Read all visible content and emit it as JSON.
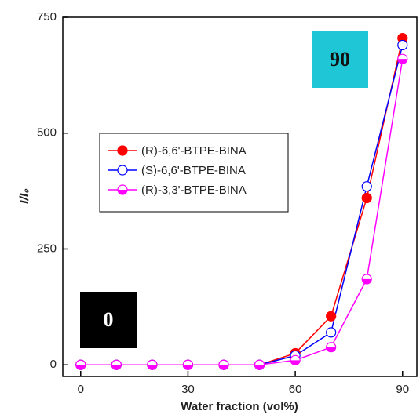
{
  "chart_data": {
    "type": "line",
    "x_label": "Water fraction (vol%)",
    "y_label": "I/I₀",
    "x": [
      0,
      10,
      20,
      30,
      40,
      50,
      60,
      70,
      80,
      90
    ],
    "series": [
      {
        "name": "(R)-6,6'-BTPE-BINA",
        "color": "#ff0000",
        "marker": "filled",
        "values": [
          0,
          0,
          0,
          0,
          0,
          0,
          25,
          105,
          360,
          705
        ]
      },
      {
        "name": "(S)-6,6'-BTPE-BINA",
        "color": "#0000ff",
        "marker": "open",
        "values": [
          0,
          0,
          0,
          0,
          0,
          0,
          20,
          70,
          385,
          690
        ]
      },
      {
        "name": "(R)-3,3'-BTPE-BINA",
        "color": "#ff00ff",
        "marker": "half",
        "values": [
          0,
          0,
          0,
          0,
          0,
          0,
          10,
          38,
          185,
          660
        ]
      }
    ],
    "xlim": [
      -5,
      94
    ],
    "ylim": [
      -25,
      750
    ],
    "xticks": [
      0,
      30,
      60,
      90
    ],
    "yticks": [
      0,
      250,
      500,
      750
    ],
    "annotations": [
      "0",
      "90"
    ]
  }
}
